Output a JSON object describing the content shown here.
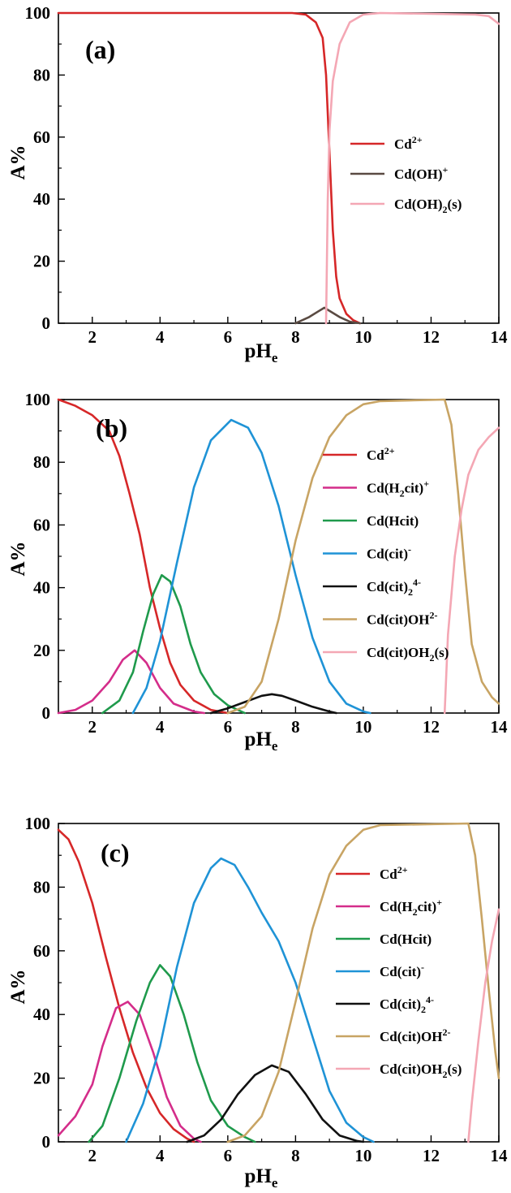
{
  "chart_data": [
    {
      "type": "line",
      "panel_label": "(a)",
      "xlabel": "pH",
      "xlabel_sub": "e",
      "ylabel": "A%",
      "xlim": [
        1,
        14
      ],
      "ylim": [
        0,
        100
      ],
      "xticks": [
        2,
        4,
        6,
        8,
        10,
        12,
        14
      ],
      "yticks": [
        0,
        20,
        40,
        60,
        80,
        100
      ],
      "grid": false,
      "legend_position": "right",
      "series": [
        {
          "color": "#d62728",
          "label": [
            {
              "t": "Cd"
            },
            {
              "t": "2+",
              "s": "sup"
            }
          ],
          "points": [
            [
              1,
              100
            ],
            [
              7.5,
              100
            ],
            [
              7.9,
              100
            ],
            [
              8.3,
              99.5
            ],
            [
              8.6,
              97
            ],
            [
              8.8,
              92
            ],
            [
              8.9,
              80
            ],
            [
              9.0,
              55
            ],
            [
              9.1,
              30
            ],
            [
              9.2,
              15
            ],
            [
              9.3,
              8
            ],
            [
              9.5,
              3
            ],
            [
              9.7,
              1
            ],
            [
              9.9,
              0
            ]
          ]
        },
        {
          "color": "#5a4a42",
          "label": [
            {
              "t": "Cd(OH)"
            },
            {
              "t": "+",
              "s": "sup"
            }
          ],
          "points": [
            [
              8.0,
              0
            ],
            [
              8.4,
              2
            ],
            [
              8.7,
              4
            ],
            [
              8.85,
              5
            ],
            [
              9.0,
              4
            ],
            [
              9.3,
              2
            ],
            [
              9.6,
              0.5
            ],
            [
              9.9,
              0
            ]
          ]
        },
        {
          "color": "#f4a7b4",
          "label": [
            {
              "t": "Cd(OH)"
            },
            {
              "t": "2",
              "s": "sub"
            },
            {
              "t": "(s)"
            }
          ],
          "points": [
            [
              8.9,
              0
            ],
            [
              8.95,
              40
            ],
            [
              9.0,
              62
            ],
            [
              9.1,
              78
            ],
            [
              9.3,
              90
            ],
            [
              9.6,
              97
            ],
            [
              10.0,
              99.5
            ],
            [
              10.5,
              100
            ],
            [
              13.3,
              99.5
            ],
            [
              13.7,
              99
            ],
            [
              14,
              96.5
            ]
          ]
        }
      ]
    },
    {
      "type": "line",
      "panel_label": "(b)",
      "xlabel": "pH",
      "xlabel_sub": "e",
      "ylabel": "A%",
      "xlim": [
        1,
        14
      ],
      "ylim": [
        0,
        100
      ],
      "xticks": [
        2,
        4,
        6,
        8,
        10,
        12,
        14
      ],
      "yticks": [
        0,
        20,
        40,
        60,
        80,
        100
      ],
      "grid": false,
      "legend_position": "right",
      "series": [
        {
          "color": "#d62728",
          "label": [
            {
              "t": "Cd"
            },
            {
              "t": "2+",
              "s": "sup"
            }
          ],
          "points": [
            [
              1,
              100
            ],
            [
              1.5,
              98
            ],
            [
              2,
              95
            ],
            [
              2.5,
              90
            ],
            [
              2.8,
              82
            ],
            [
              3.1,
              70
            ],
            [
              3.4,
              57
            ],
            [
              3.7,
              40
            ],
            [
              4,
              27
            ],
            [
              4.3,
              16
            ],
            [
              4.6,
              9
            ],
            [
              5,
              4
            ],
            [
              5.5,
              1
            ],
            [
              6,
              0
            ]
          ]
        },
        {
          "color": "#d42d8a",
          "label": [
            {
              "t": "Cd(H"
            },
            {
              "t": "2",
              "s": "sub"
            },
            {
              "t": "cit)"
            },
            {
              "t": "+",
              "s": "sup"
            }
          ],
          "points": [
            [
              1,
              0
            ],
            [
              1.5,
              1
            ],
            [
              2,
              4
            ],
            [
              2.5,
              10
            ],
            [
              2.9,
              17
            ],
            [
              3.25,
              20
            ],
            [
              3.6,
              16
            ],
            [
              4,
              8
            ],
            [
              4.4,
              3
            ],
            [
              5,
              0.5
            ],
            [
              5.3,
              0
            ]
          ]
        },
        {
          "color": "#1f9a4c",
          "label": [
            {
              "t": "Cd(Hcit)"
            }
          ],
          "points": [
            [
              2.3,
              0
            ],
            [
              2.8,
              4
            ],
            [
              3.2,
              13
            ],
            [
              3.5,
              26
            ],
            [
              3.8,
              38
            ],
            [
              4.05,
              44
            ],
            [
              4.3,
              42
            ],
            [
              4.6,
              34
            ],
            [
              4.9,
              22
            ],
            [
              5.2,
              13
            ],
            [
              5.6,
              6
            ],
            [
              6.0,
              2.5
            ],
            [
              6.5,
              0
            ]
          ]
        },
        {
          "color": "#1f93d6",
          "label": [
            {
              "t": "Cd(cit)"
            },
            {
              "t": "-",
              "s": "sup"
            }
          ],
          "points": [
            [
              3.2,
              0
            ],
            [
              3.6,
              8
            ],
            [
              4,
              23
            ],
            [
              4.5,
              48
            ],
            [
              5,
              72
            ],
            [
              5.5,
              87
            ],
            [
              6.1,
              93.5
            ],
            [
              6.6,
              91
            ],
            [
              7,
              83
            ],
            [
              7.5,
              66
            ],
            [
              8,
              44
            ],
            [
              8.5,
              24
            ],
            [
              9,
              10
            ],
            [
              9.5,
              3
            ],
            [
              10,
              0.5
            ],
            [
              10.2,
              0
            ]
          ]
        },
        {
          "color": "#111111",
          "label": [
            {
              "t": "Cd(cit)"
            },
            {
              "t": "2",
              "s": "sub"
            },
            {
              "t": "4-",
              "s": "sup"
            }
          ],
          "points": [
            [
              5.5,
              0
            ],
            [
              6,
              1.5
            ],
            [
              6.5,
              3.5
            ],
            [
              7,
              5.5
            ],
            [
              7.3,
              6
            ],
            [
              7.6,
              5.5
            ],
            [
              8,
              4
            ],
            [
              8.5,
              2
            ],
            [
              9,
              0.5
            ],
            [
              9.2,
              0
            ]
          ]
        },
        {
          "color": "#c8a464",
          "label": [
            {
              "t": "Cd(cit)OH"
            },
            {
              "t": "2-",
              "s": "sup"
            }
          ],
          "points": [
            [
              6,
              0
            ],
            [
              6.5,
              2
            ],
            [
              7,
              10
            ],
            [
              7.5,
              30
            ],
            [
              8,
              55
            ],
            [
              8.5,
              75
            ],
            [
              9,
              88
            ],
            [
              9.5,
              95
            ],
            [
              10,
              98.5
            ],
            [
              10.5,
              99.5
            ],
            [
              12.4,
              100
            ],
            [
              12.6,
              92
            ],
            [
              12.8,
              70
            ],
            [
              13,
              45
            ],
            [
              13.2,
              22
            ],
            [
              13.5,
              10
            ],
            [
              13.8,
              5
            ],
            [
              14,
              3
            ]
          ]
        },
        {
          "color": "#f4a7b4",
          "label": [
            {
              "t": "Cd(cit)OH"
            },
            {
              "t": "2",
              "s": "sub"
            },
            {
              "t": "(s)"
            }
          ],
          "points": [
            [
              12.4,
              0
            ],
            [
              12.5,
              25
            ],
            [
              12.7,
              50
            ],
            [
              12.9,
              65
            ],
            [
              13.1,
              76
            ],
            [
              13.4,
              84
            ],
            [
              13.7,
              88
            ],
            [
              14,
              91
            ]
          ]
        }
      ]
    },
    {
      "type": "line",
      "panel_label": "(c)",
      "xlabel": "pH",
      "xlabel_sub": "e",
      "ylabel": "A%",
      "xlim": [
        1,
        14
      ],
      "ylim": [
        0,
        100
      ],
      "xticks": [
        2,
        4,
        6,
        8,
        10,
        12,
        14
      ],
      "yticks": [
        0,
        20,
        40,
        60,
        80,
        100
      ],
      "grid": false,
      "legend_position": "right",
      "series": [
        {
          "color": "#d62728",
          "label": [
            {
              "t": "Cd"
            },
            {
              "t": "2+",
              "s": "sup"
            }
          ],
          "points": [
            [
              1,
              98
            ],
            [
              1.3,
              95
            ],
            [
              1.6,
              88
            ],
            [
              2,
              75
            ],
            [
              2.4,
              58
            ],
            [
              2.8,
              42
            ],
            [
              3.2,
              28
            ],
            [
              3.6,
              17
            ],
            [
              4,
              9
            ],
            [
              4.4,
              4
            ],
            [
              4.8,
              1
            ],
            [
              5,
              0
            ]
          ]
        },
        {
          "color": "#d42d8a",
          "label": [
            {
              "t": "Cd(H"
            },
            {
              "t": "2",
              "s": "sub"
            },
            {
              "t": "cit)"
            },
            {
              "t": "+",
              "s": "sup"
            }
          ],
          "points": [
            [
              1,
              2
            ],
            [
              1.5,
              8
            ],
            [
              2,
              18
            ],
            [
              2.3,
              30
            ],
            [
              2.7,
              42
            ],
            [
              3.05,
              44
            ],
            [
              3.4,
              40
            ],
            [
              3.8,
              28
            ],
            [
              4.2,
              14
            ],
            [
              4.6,
              5
            ],
            [
              5,
              1
            ],
            [
              5.2,
              0
            ]
          ]
        },
        {
          "color": "#1f9a4c",
          "label": [
            {
              "t": "Cd(Hcit)"
            }
          ],
          "points": [
            [
              1.9,
              0
            ],
            [
              2.3,
              5
            ],
            [
              2.8,
              20
            ],
            [
              3.3,
              38
            ],
            [
              3.7,
              50
            ],
            [
              4,
              55.5
            ],
            [
              4.3,
              52
            ],
            [
              4.7,
              40
            ],
            [
              5.1,
              25
            ],
            [
              5.5,
              13
            ],
            [
              6,
              5
            ],
            [
              6.5,
              1.5
            ],
            [
              6.8,
              0
            ]
          ]
        },
        {
          "color": "#1f93d6",
          "label": [
            {
              "t": "Cd(cit)"
            },
            {
              "t": "-",
              "s": "sup"
            }
          ],
          "points": [
            [
              3,
              0
            ],
            [
              3.5,
              12
            ],
            [
              4,
              30
            ],
            [
              4.5,
              55
            ],
            [
              5,
              75
            ],
            [
              5.5,
              86
            ],
            [
              5.8,
              89
            ],
            [
              6.2,
              87
            ],
            [
              6.6,
              80
            ],
            [
              7,
              72
            ],
            [
              7.5,
              63
            ],
            [
              8,
              50
            ],
            [
              8.5,
              33
            ],
            [
              9,
              16
            ],
            [
              9.5,
              6
            ],
            [
              10,
              1.5
            ],
            [
              10.3,
              0
            ]
          ]
        },
        {
          "color": "#111111",
          "label": [
            {
              "t": "Cd(cit)"
            },
            {
              "t": "2",
              "s": "sub"
            },
            {
              "t": "4-",
              "s": "sup"
            }
          ],
          "points": [
            [
              4.8,
              0
            ],
            [
              5.3,
              2
            ],
            [
              5.8,
              7
            ],
            [
              6.3,
              15
            ],
            [
              6.8,
              21
            ],
            [
              7.3,
              24
            ],
            [
              7.8,
              22
            ],
            [
              8.3,
              15
            ],
            [
              8.8,
              7
            ],
            [
              9.3,
              2
            ],
            [
              9.8,
              0.3
            ],
            [
              10,
              0
            ]
          ]
        },
        {
          "color": "#c8a464",
          "label": [
            {
              "t": "Cd(cit)OH"
            },
            {
              "t": "2-",
              "s": "sup"
            }
          ],
          "points": [
            [
              6,
              0
            ],
            [
              6.5,
              2
            ],
            [
              7,
              8
            ],
            [
              7.5,
              22
            ],
            [
              8,
              44
            ],
            [
              8.5,
              67
            ],
            [
              9,
              84
            ],
            [
              9.5,
              93
            ],
            [
              10,
              98
            ],
            [
              10.5,
              99.5
            ],
            [
              13.1,
              100
            ],
            [
              13.3,
              90
            ],
            [
              13.5,
              70
            ],
            [
              13.7,
              48
            ],
            [
              13.9,
              28
            ],
            [
              14,
              20
            ]
          ]
        },
        {
          "color": "#f4a7b4",
          "label": [
            {
              "t": "Cd(cit)OH"
            },
            {
              "t": "2",
              "s": "sub"
            },
            {
              "t": "(s)"
            }
          ],
          "points": [
            [
              13.1,
              0
            ],
            [
              13.2,
              12
            ],
            [
              13.4,
              32
            ],
            [
              13.6,
              50
            ],
            [
              13.8,
              63
            ],
            [
              14,
              73
            ]
          ]
        }
      ]
    }
  ]
}
